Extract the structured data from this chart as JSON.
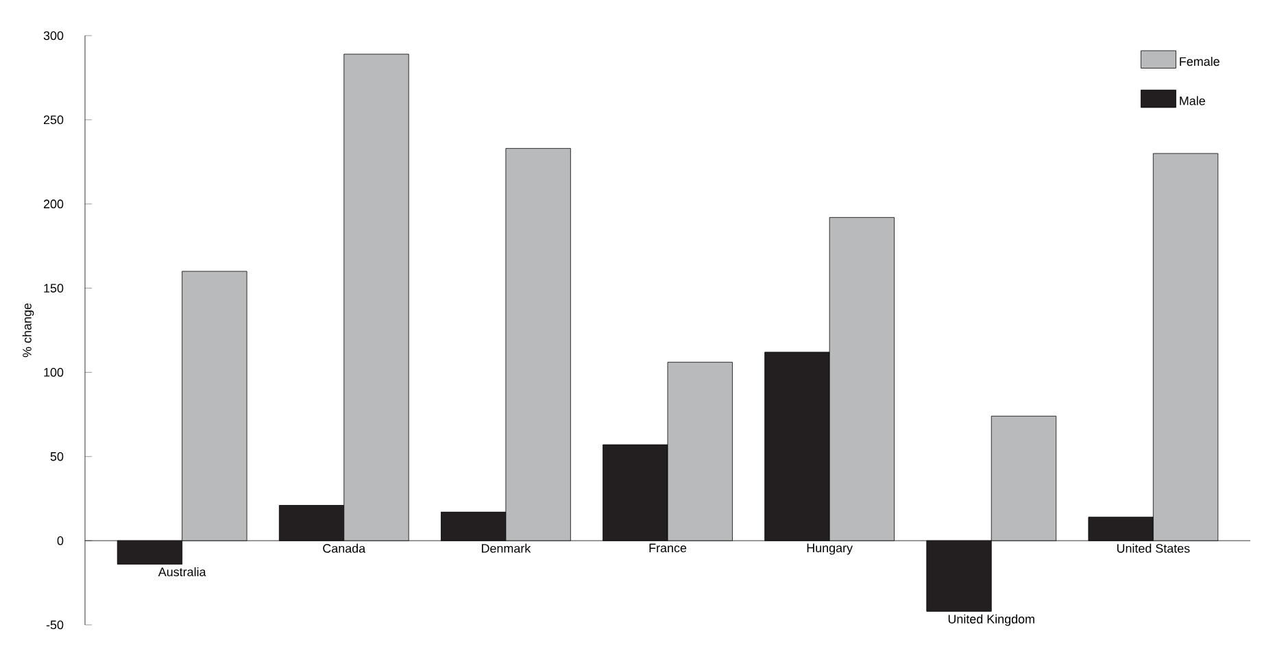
{
  "chart_data": {
    "type": "bar",
    "ylabel": "% change",
    "categories": [
      "Australia",
      "Canada",
      "Denmark",
      "France",
      "Hungary",
      "United Kingdom",
      "United States"
    ],
    "series": [
      {
        "name": "Male",
        "color": "#231f20",
        "values": [
          -14,
          21,
          17,
          57,
          112,
          -42,
          14
        ]
      },
      {
        "name": "Female",
        "color": "#b8babc",
        "values": [
          160,
          289,
          233,
          106,
          192,
          74,
          230
        ]
      }
    ],
    "ylim": [
      -50,
      300
    ],
    "yticks": [
      -50,
      0,
      50,
      100,
      150,
      200,
      250,
      300
    ],
    "legend": "top right",
    "grid": false
  }
}
